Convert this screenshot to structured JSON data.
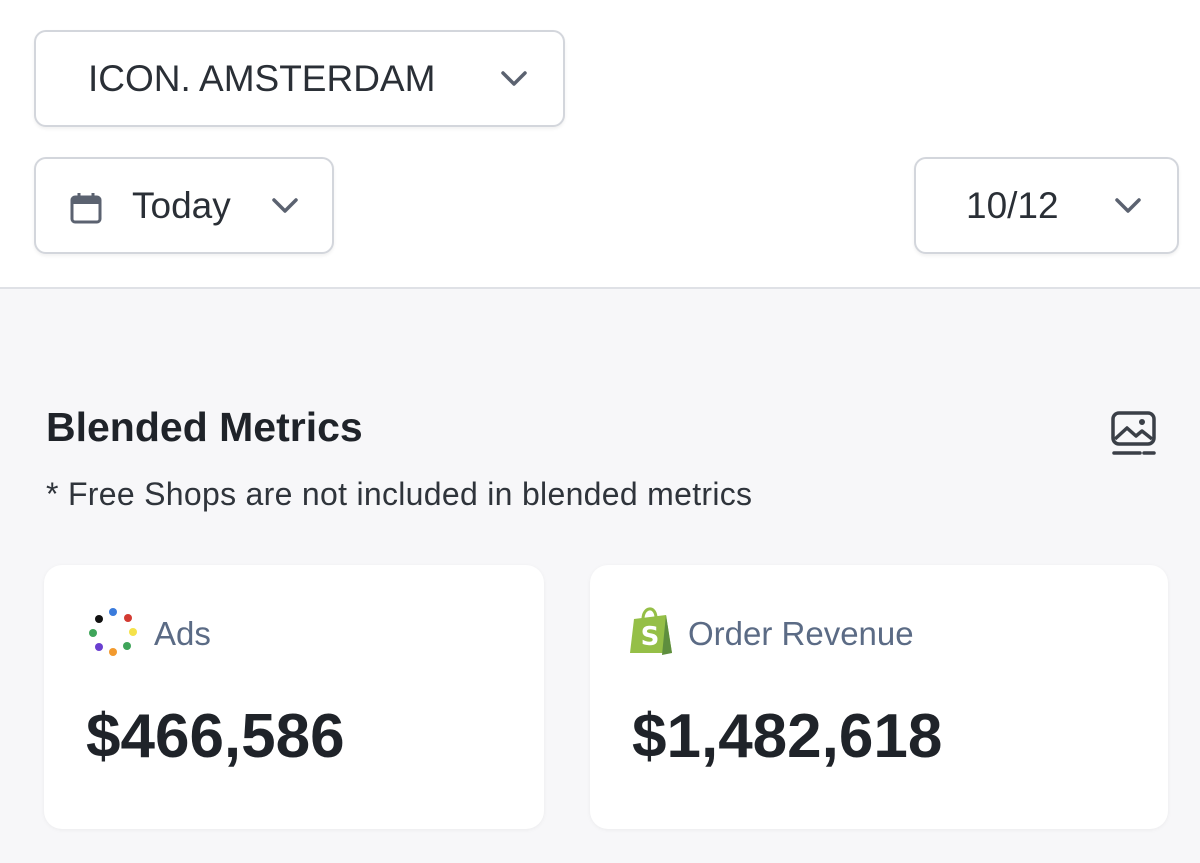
{
  "filters": {
    "store": "ICON. AMSTERDAM",
    "date_range": "Today",
    "date": "10/12"
  },
  "section": {
    "title": "Blended Metrics",
    "note": "* Free Shops are not included in blended metrics"
  },
  "cards": [
    {
      "label": "Ads",
      "value": "$466,586"
    },
    {
      "label": "Order Revenue",
      "value": "$1,482,618"
    }
  ]
}
